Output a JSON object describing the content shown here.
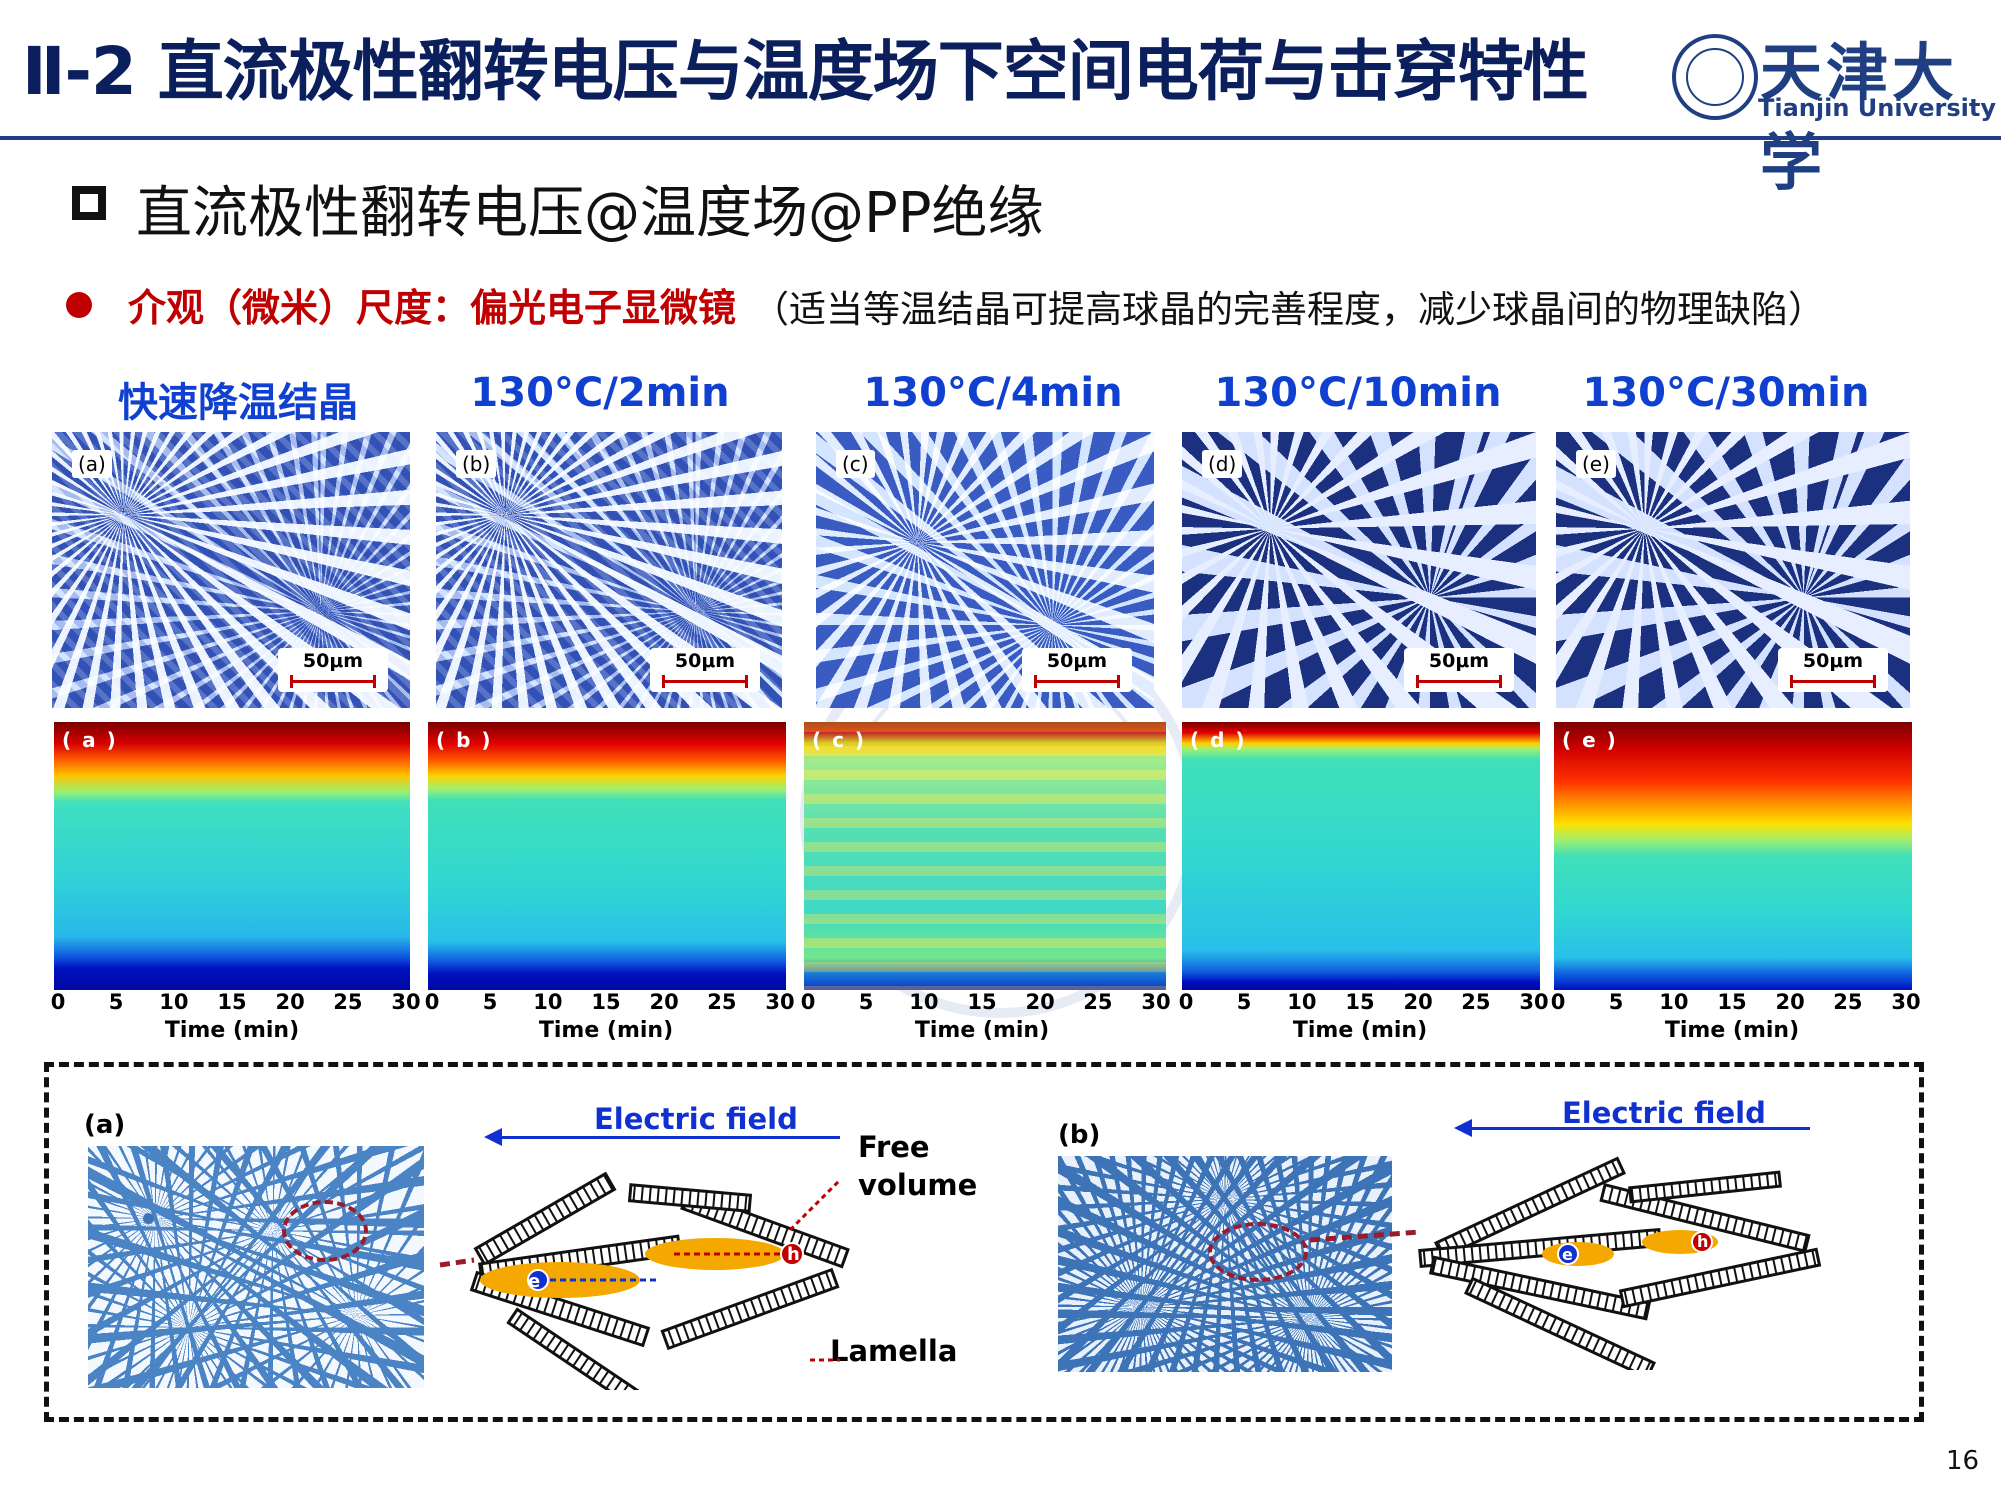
{
  "header": {
    "title": "Ⅱ-2 直流极性翻转电压与温度场下空间电荷与击穿特性",
    "logo_cn": "天津大学",
    "logo_en": "Tianjin University"
  },
  "section": {
    "heading": "直流极性翻转电压@温度场@PP绝缘",
    "bullet_red": "介观（微米）尺度：偏光电子显微镜",
    "bullet_note": "（适当等温结晶可提高球晶的完善程度，减少球晶间的物理缺陷）"
  },
  "panels": [
    {
      "heading": "快速降温结晶",
      "micro_tag": "(a)",
      "map_tag": "( a )",
      "scale": "50μm"
    },
    {
      "heading": "130°C/2min",
      "micro_tag": "(b)",
      "map_tag": "( b )",
      "scale": "50μm"
    },
    {
      "heading": "130°C/4min",
      "micro_tag": "(c)",
      "map_tag": "( c )",
      "scale": "50μm"
    },
    {
      "heading": "130°C/10min",
      "micro_tag": "(d)",
      "map_tag": "( d )",
      "scale": "50μm"
    },
    {
      "heading": "130°C/30min",
      "micro_tag": "(e)",
      "map_tag": "( e )",
      "scale": "50μm"
    }
  ],
  "axis": {
    "ticks": [
      "0",
      "5",
      "10",
      "15",
      "20",
      "25",
      "30"
    ],
    "label": "Time (min)"
  },
  "schematic": {
    "a_label": "(a)",
    "b_label": "(b)",
    "electric_field": "Electric field",
    "free_volume": "Free\nvolume",
    "lamella": "Lamella",
    "electron": "e",
    "hole": "h"
  },
  "page_number": "16",
  "colors": {
    "title": "#0b1f5c",
    "accent_red": "#c00000",
    "heading_blue": "#1040d0",
    "rule": "#1f3f82"
  }
}
